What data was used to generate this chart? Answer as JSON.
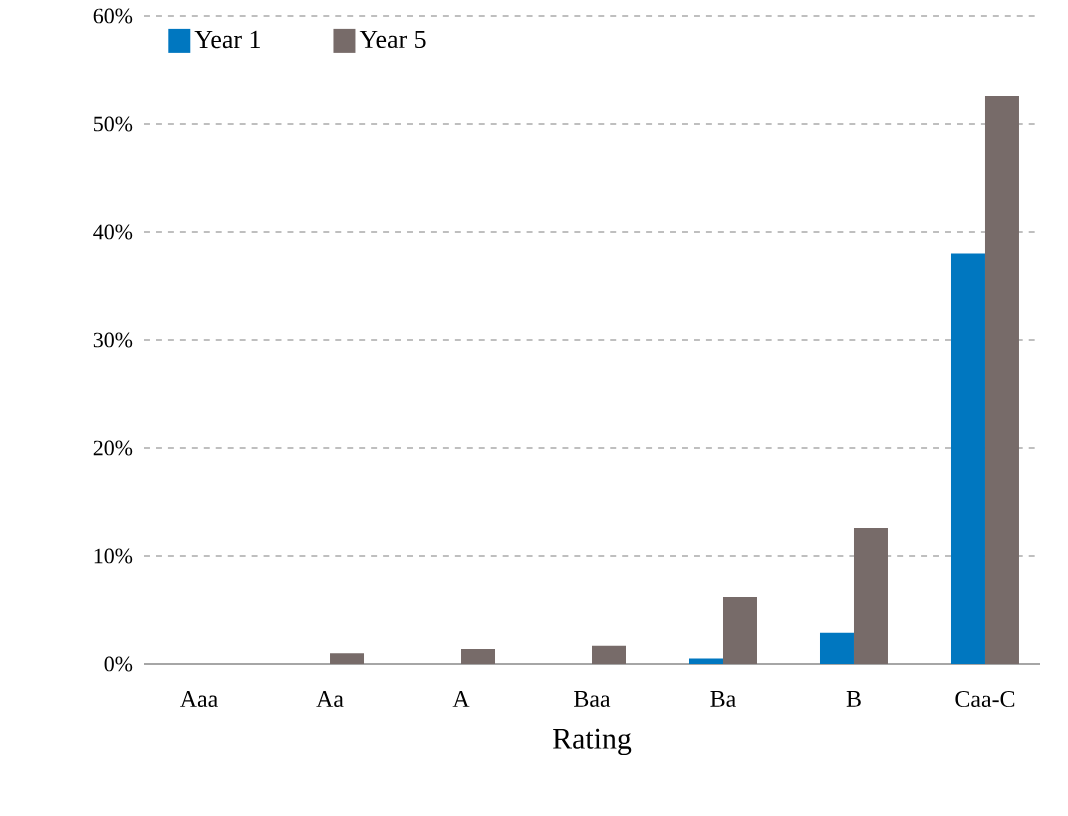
{
  "chart_data": {
    "type": "bar",
    "xlabel": "Rating",
    "categories": [
      "Aaa",
      "Aa",
      "A",
      "Baa",
      "Ba",
      "B",
      "Caa-C"
    ],
    "series": [
      {
        "name": "Year 1",
        "color": "#0077c0",
        "values": [
          0,
          0,
          0,
          0,
          0.5,
          2.9,
          38.0
        ]
      },
      {
        "name": "Year 5",
        "color": "#776b69",
        "values": [
          0,
          1.0,
          1.4,
          1.7,
          6.2,
          12.6,
          52.6
        ]
      }
    ],
    "ylim": [
      0,
      60
    ],
    "yticks": [
      {
        "value": 0,
        "label": "0%"
      },
      {
        "value": 10,
        "label": "10%"
      },
      {
        "value": 20,
        "label": "20%"
      },
      {
        "value": 30,
        "label": "30%"
      },
      {
        "value": 40,
        "label": "40%"
      },
      {
        "value": 50,
        "label": "50%"
      },
      {
        "value": 60,
        "label": "60%"
      }
    ],
    "grid": "y",
    "legend": "top left"
  }
}
